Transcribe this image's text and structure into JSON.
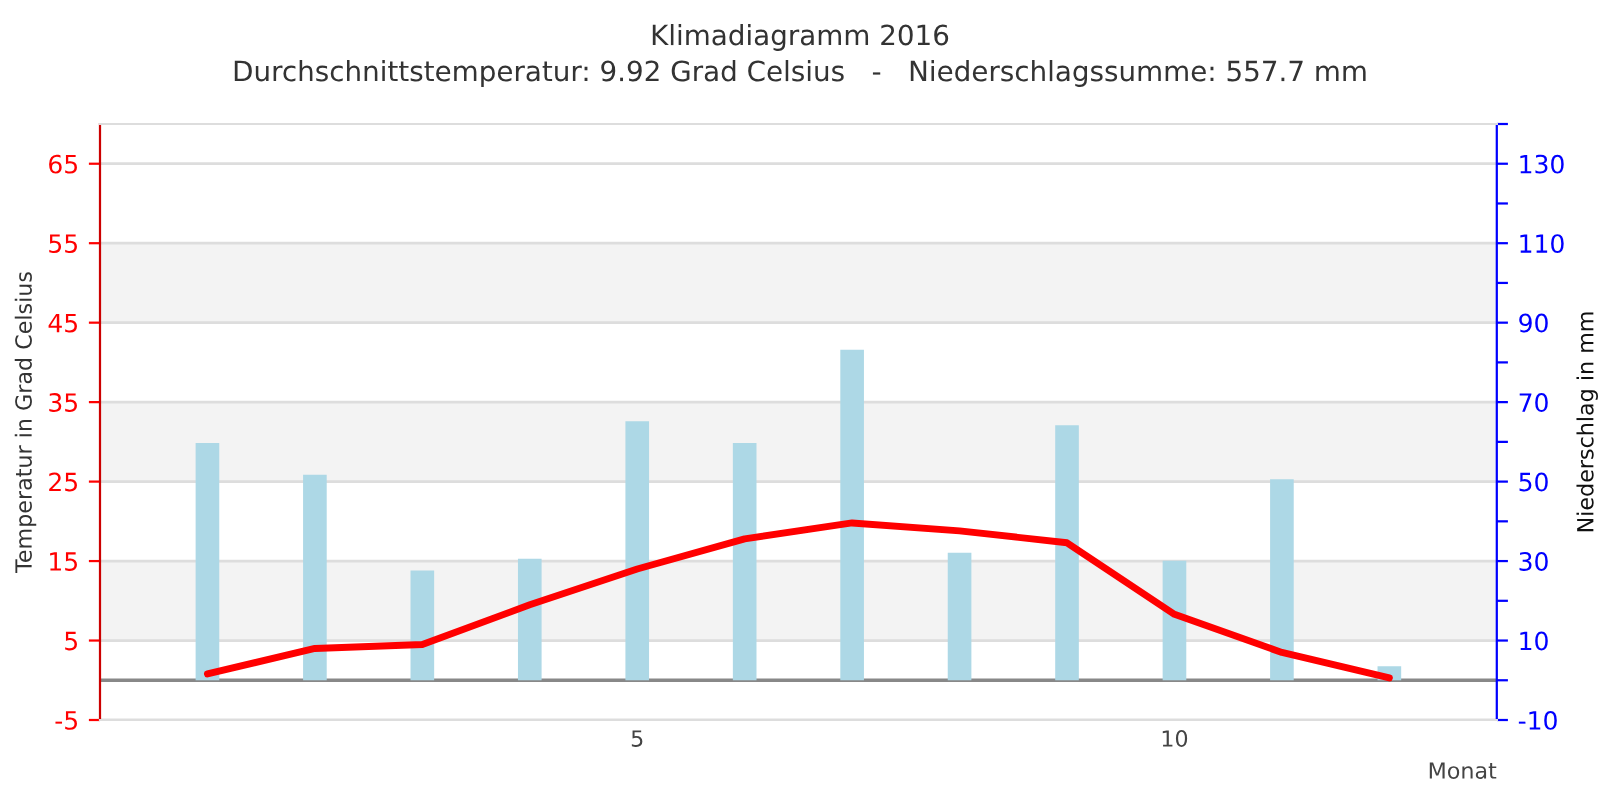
{
  "chart_data": {
    "type": "line",
    "title": "Klimadiagramm 2016",
    "subtitle": "Durchschnittstemperatur: 9.92 Grad Celsius   -   Niederschlagssumme: 557.7 mm",
    "xlabel": "Monat",
    "ylabel": "Temperatur in Grad Celsius",
    "y2label": "Niederschlag in mm",
    "x": [
      1,
      2,
      3,
      4,
      5,
      6,
      7,
      8,
      9,
      10,
      11,
      12
    ],
    "series": [
      {
        "type": "bar",
        "axis": "y2",
        "color": "#add8e6",
        "values": [
          59.7,
          51.7,
          27.6,
          30.6,
          65.2,
          59.7,
          83.2,
          32.1,
          64.2,
          30.1,
          50.6,
          3.5
        ]
      },
      {
        "axis": "y",
        "color": "#ff0000",
        "values": [
          0.8,
          4.0,
          4.5,
          9.5,
          14.0,
          17.8,
          19.8,
          18.8,
          17.3,
          8.3,
          3.5,
          0.3
        ]
      }
    ],
    "xlim": [
      0,
      13
    ],
    "xticks": [
      5,
      10
    ],
    "ylim": [
      -5,
      70
    ],
    "yticks": [
      -5,
      5,
      15,
      25,
      35,
      45,
      55,
      65
    ],
    "y2lim": [
      -10,
      140
    ],
    "y2ticks": [
      -10,
      {
        "value": 0,
        "label": null
      },
      10,
      {
        "value": 20,
        "label": null
      },
      30,
      {
        "value": 40,
        "label": null
      },
      50,
      {
        "value": 60,
        "label": null
      },
      70,
      {
        "value": 80,
        "label": null
      },
      90,
      {
        "value": 100,
        "label": null
      },
      110,
      {
        "value": 120,
        "label": null
      },
      130,
      {
        "value": 140,
        "label": null
      }
    ],
    "bands": [
      {
        "axis": "y",
        "from": 5,
        "to": 15,
        "color": "#f3f3f3"
      },
      {
        "axis": "y",
        "from": 25,
        "to": 35,
        "color": "#f3f3f3"
      },
      {
        "axis": "y",
        "from": 45,
        "to": 55,
        "color": "#f3f3f3"
      }
    ],
    "ref_lines": [
      {
        "axis": "y",
        "value": 0,
        "color": "#888888"
      }
    ],
    "grid": "y",
    "marker": "none",
    "line_style": "solid"
  }
}
